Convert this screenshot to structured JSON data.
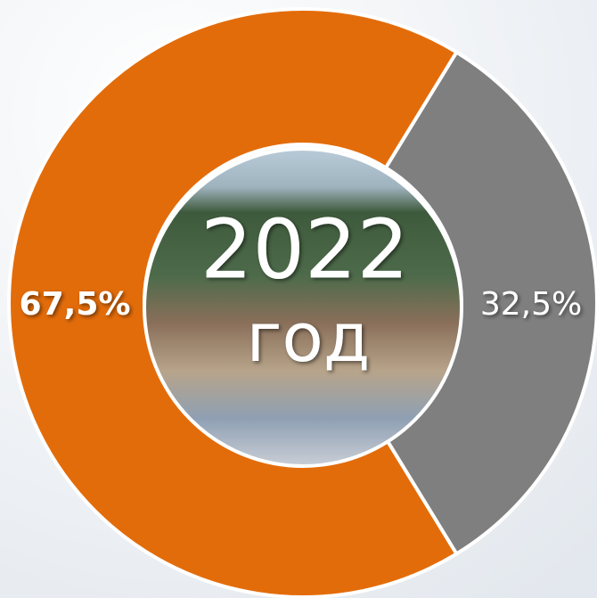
{
  "chart_data": {
    "type": "pie",
    "donut": true,
    "values": [
      67.5,
      32.5
    ],
    "value_labels": [
      "67,5%",
      "32,5%"
    ],
    "colors": [
      "#e36c0a",
      "#7f7f7f"
    ],
    "annotations": [
      "2022",
      "год"
    ]
  }
}
